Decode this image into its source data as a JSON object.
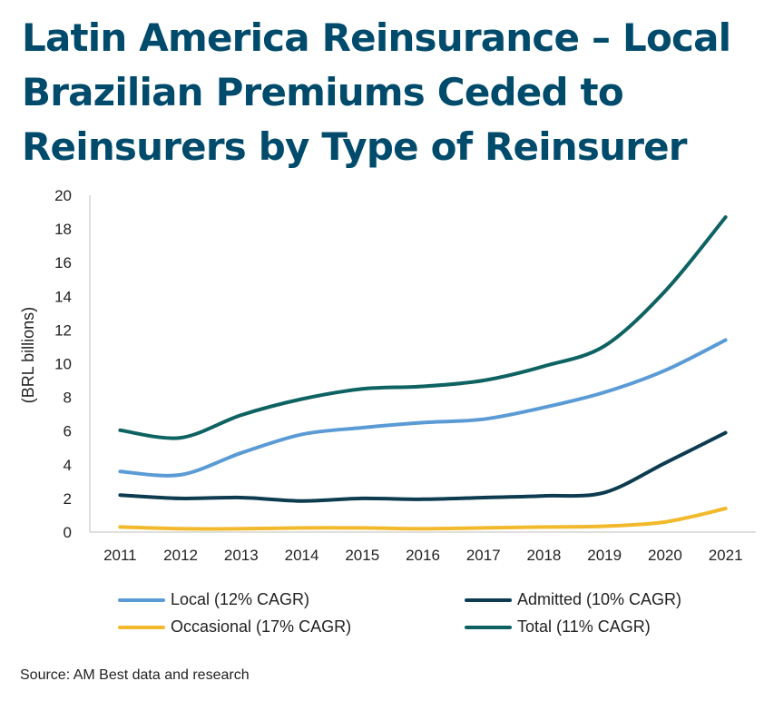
{
  "title": "Latin America Reinsurance – Local Brazilian Premiums Ceded to Reinsurers by Type of Reinsurer",
  "source": "Source: AM Best data and research",
  "chart_data": {
    "type": "line",
    "title": "Latin America Reinsurance – Local Brazilian Premiums Ceded to Reinsurers by Type of Reinsurer",
    "xlabel": "",
    "ylabel": "(BRL billions)",
    "x": [
      "2011",
      "2012",
      "2013",
      "2014",
      "2015",
      "2016",
      "2017",
      "2018",
      "2019",
      "2020",
      "2021"
    ],
    "ylim": [
      0,
      20
    ],
    "yticks": [
      "0",
      "2",
      "4",
      "6",
      "8",
      "10",
      "12",
      "14",
      "16",
      "18",
      "20"
    ],
    "grid": false,
    "legend_position": "bottom",
    "series": [
      {
        "name": "Local (12% CAGR)",
        "color": "#5b9bd5",
        "values": [
          3.6,
          3.4,
          4.7,
          5.8,
          6.2,
          6.5,
          6.7,
          7.4,
          8.3,
          9.6,
          11.4
        ]
      },
      {
        "name": "Admitted (10% CAGR)",
        "color": "#0d3b4f",
        "values": [
          2.2,
          2.0,
          2.05,
          1.85,
          2.0,
          1.95,
          2.05,
          2.15,
          2.35,
          4.1,
          5.9
        ]
      },
      {
        "name": "Occasional (17% CAGR)",
        "color": "#f2b92c",
        "values": [
          0.3,
          0.2,
          0.2,
          0.25,
          0.25,
          0.2,
          0.25,
          0.3,
          0.35,
          0.6,
          1.4
        ]
      },
      {
        "name": "Total (11% CAGR)",
        "color": "#0e6262",
        "values": [
          6.05,
          5.6,
          6.95,
          7.9,
          8.5,
          8.65,
          9.0,
          9.85,
          11.05,
          14.3,
          18.7
        ]
      }
    ]
  }
}
